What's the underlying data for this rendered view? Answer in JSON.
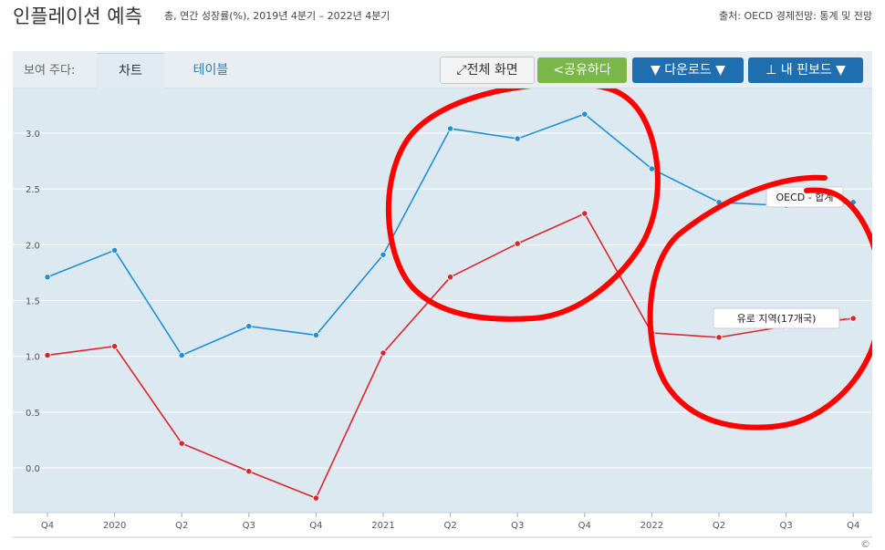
{
  "header": {
    "title": "인플레이션 예측",
    "subtitle": "총, 연간 성장률(%), 2019년 4분기 – 2022년 4분기",
    "source": "출처: OECD 경제전망: 통계 및 전망"
  },
  "toolbar": {
    "show_label": "보여 주다:",
    "tab_chart": "차트",
    "tab_table": "테이블",
    "fullscreen": "전체 화면",
    "share": "공유하다",
    "download": "다운로드 ▼",
    "dashboard": "내 핀보드 ▼"
  },
  "colors": {
    "oecd": "#1f8fd6",
    "euro": "#d9262c",
    "plot_bg": "#dde9f1",
    "annotation": "#ff0000"
  },
  "chart_data": {
    "type": "line",
    "categories": [
      "Q4",
      "2020",
      "Q2",
      "Q3",
      "Q4",
      "2021",
      "Q2",
      "Q3",
      "Q4",
      "2022",
      "Q2",
      "Q3",
      "Q4"
    ],
    "ylim": [
      -0.4,
      3.4
    ],
    "yticks": [
      "3.0",
      "2.5",
      "2.0",
      "1.5",
      "1.0",
      "0.5",
      "0.0"
    ],
    "ytick_values": [
      3.0,
      2.5,
      2.0,
      1.5,
      1.0,
      0.5,
      0.0
    ],
    "grid": true,
    "series": [
      {
        "name": "OECD - 합계",
        "color": "#1f8fd6",
        "values": [
          1.71,
          1.95,
          1.01,
          1.27,
          1.19,
          1.91,
          3.04,
          2.95,
          3.17,
          2.68,
          2.38,
          2.35,
          2.38
        ]
      },
      {
        "name": "유로 지역(17개국)",
        "color": "#d9262c",
        "values": [
          1.01,
          1.09,
          0.22,
          -0.03,
          -0.27,
          1.03,
          1.71,
          2.01,
          2.28,
          1.21,
          1.17,
          1.27,
          1.34
        ]
      }
    ],
    "copyright": "©"
  }
}
